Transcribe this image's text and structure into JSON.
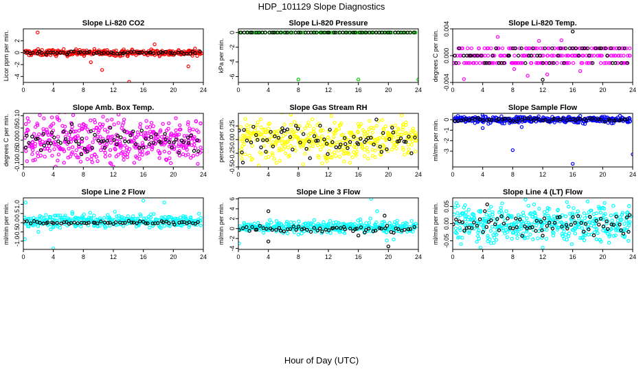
{
  "page": {
    "title": "HDP_101129  Slope Diagnostics",
    "x_axis_title": "Hour of Day (UTC)"
  },
  "chart_data": [
    {
      "type": "scatter",
      "title": "Slope Li-820 CO2",
      "ylabel": "Licor ppm per min.",
      "xlim": [
        0,
        24
      ],
      "ylim": [
        -5,
        4
      ],
      "x_ticks": [
        0,
        4,
        8,
        12,
        16,
        20,
        24
      ],
      "x_tick_labels": [
        "0",
        "4",
        "8",
        "12",
        "16",
        "20",
        "24"
      ],
      "y_ticks": [
        -4,
        -2,
        0,
        2
      ],
      "y_tick_labels": [
        "-4",
        "-2",
        "0",
        "2"
      ],
      "grid": false,
      "series": [
        {
          "color": "#ff0000",
          "cluster": {
            "center": 0.0,
            "spread": 0.9,
            "count": 300
          },
          "points": [
            [
              1.9,
              3.4
            ],
            [
              10.5,
              -2.9
            ],
            [
              14.1,
              -4.9
            ],
            [
              22.0,
              -2.3
            ],
            [
              9.0,
              -1.6
            ],
            [
              17.5,
              1.4
            ]
          ]
        },
        {
          "color": "#000000",
          "cluster": {
            "center": 0.0,
            "spread": 0.4,
            "count": 60
          },
          "points": []
        }
      ]
    },
    {
      "type": "scatter",
      "title": "Slope Li-820 Pressure",
      "ylabel": "kPa per min.",
      "xlim": [
        0,
        24
      ],
      "ylim": [
        -6.8,
        0.5
      ],
      "x_ticks": [
        0,
        4,
        8,
        12,
        16,
        20,
        24
      ],
      "x_tick_labels": [
        "0",
        "4",
        "8",
        "12",
        "16",
        "20",
        "24"
      ],
      "y_ticks": [
        -6,
        -4,
        -2,
        0
      ],
      "y_tick_labels": [
        "-6",
        "-4",
        "-2",
        "0"
      ],
      "grid": false,
      "series": [
        {
          "color": "#00cc00",
          "cluster": {
            "center": 0.0,
            "spread": 0.0,
            "count": 80
          },
          "points": [
            [
              8.0,
              -6.4
            ],
            [
              16.0,
              -6.4
            ],
            [
              24.0,
              -6.4
            ],
            [
              0.0,
              0.0
            ]
          ]
        },
        {
          "color": "#000000",
          "cluster": {
            "center": 0.0,
            "spread": 0.0,
            "count": 55
          },
          "points": []
        }
      ]
    },
    {
      "type": "scatter",
      "title": "Slope Li-820 Temp.",
      "ylabel": "degrees C per min.",
      "xlim": [
        0,
        24
      ],
      "ylim": [
        -0.004,
        0.004
      ],
      "x_ticks": [
        0,
        4,
        8,
        12,
        16,
        20,
        24
      ],
      "x_tick_labels": [
        "0",
        "4",
        "8",
        "12",
        "16",
        "20",
        "24"
      ],
      "y_ticks": [
        -0.004,
        0.0,
        0.004
      ],
      "y_tick_labels": [
        "-0.004",
        "0.000",
        "0.004"
      ],
      "grid": false,
      "series": [
        {
          "color": "#ff00ff",
          "bands": [
            0.0011,
            0.0,
            -0.0011
          ],
          "cluster": {
            "count": 240
          },
          "points": [
            [
              1.5,
              -0.0035
            ],
            [
              6.0,
              0.0028
            ],
            [
              8.2,
              -0.002
            ],
            [
              10.0,
              -0.003
            ],
            [
              12.6,
              -0.0028
            ],
            [
              14.5,
              0.0023
            ],
            [
              17.0,
              -0.0023
            ],
            [
              11.5,
              0.0022
            ]
          ]
        },
        {
          "color": "#000000",
          "bands": [
            0.0011,
            0.0,
            -0.0011
          ],
          "cluster": {
            "count": 60
          },
          "points": [
            [
              12.0,
              -0.0036
            ],
            [
              16.0,
              0.0036
            ]
          ]
        }
      ]
    },
    {
      "type": "scatter",
      "title": "Slope Amb. Box Temp.",
      "ylabel": "degrees C per min.",
      "xlim": [
        0,
        24
      ],
      "ylim": [
        -0.11,
        0.11
      ],
      "x_ticks": [
        0,
        4,
        8,
        12,
        16,
        20,
        24
      ],
      "x_tick_labels": [
        "0",
        "4",
        "8",
        "12",
        "16",
        "20",
        "24"
      ],
      "y_ticks": [
        -0.1,
        -0.05,
        0.0,
        0.05,
        0.1
      ],
      "y_tick_labels": [
        "-0.10",
        "-0.05",
        "0.00",
        "0.05",
        "0.10"
      ],
      "grid": false,
      "series": [
        {
          "color": "#ff00ff",
          "cluster": {
            "center": 0.0,
            "spread": 0.16,
            "count": 420
          },
          "points": []
        },
        {
          "color": "#000000",
          "cluster": {
            "center": 0.0,
            "spread": 0.1,
            "count": 70
          },
          "points": []
        }
      ]
    },
    {
      "type": "scatter",
      "title": "Slope Gas Stream RH",
      "ylabel": "percent per min.",
      "xlim": [
        0,
        24
      ],
      "ylim": [
        -0.5,
        0.48
      ],
      "x_ticks": [
        0,
        4,
        8,
        12,
        16,
        20,
        24
      ],
      "x_tick_labels": [
        "0",
        "4",
        "8",
        "12",
        "16",
        "20",
        "24"
      ],
      "y_ticks": [
        -0.5,
        -0.25,
        0.0,
        0.25
      ],
      "y_tick_labels": [
        "-0.50",
        "-0.25",
        "0.00",
        "0.25"
      ],
      "grid": false,
      "series": [
        {
          "color": "#ffff00",
          "cluster": {
            "center": 0.0,
            "spread": 0.62,
            "count": 420
          },
          "points": []
        },
        {
          "color": "#000000",
          "cluster": {
            "center": 0.0,
            "spread": 0.45,
            "count": 70
          },
          "points": [
            [
              0.6,
              -0.42
            ]
          ]
        }
      ]
    },
    {
      "type": "scatter",
      "title": "Slope Sample Flow",
      "ylabel": "ml/min per min.",
      "xlim": [
        0,
        24
      ],
      "ylim": [
        -4.5,
        0.6
      ],
      "x_ticks": [
        0,
        4,
        8,
        12,
        16,
        20,
        24
      ],
      "x_tick_labels": [
        "0",
        "4",
        "8",
        "12",
        "16",
        "20",
        "24"
      ],
      "y_ticks": [
        -3,
        -2,
        -1,
        0
      ],
      "y_tick_labels": [
        "-3",
        "-2",
        "-1",
        "0"
      ],
      "grid": false,
      "series": [
        {
          "color": "#0000ff",
          "cluster": {
            "center": 0.0,
            "spread": 0.55,
            "count": 330
          },
          "points": [
            [
              8.0,
              -2.9
            ],
            [
              16.0,
              -4.2
            ],
            [
              24.0,
              -3.3
            ],
            [
              4.0,
              -0.8
            ],
            [
              9.2,
              -0.7
            ]
          ]
        },
        {
          "color": "#000000",
          "cluster": {
            "center": 0.0,
            "spread": 0.3,
            "count": 60
          },
          "points": []
        }
      ]
    },
    {
      "type": "scatter",
      "title": "Slope Line 2 Flow",
      "ylabel": "ml/min per min.",
      "xlim": [
        0,
        24
      ],
      "ylim": [
        -1.45,
        1.35
      ],
      "x_ticks": [
        0,
        4,
        8,
        12,
        16,
        20,
        24
      ],
      "x_tick_labels": [
        "0",
        "4",
        "8",
        "12",
        "16",
        "20",
        "24"
      ],
      "y_ticks": [
        -1.0,
        -0.5,
        0.0,
        0.5,
        1.0
      ],
      "y_tick_labels": [
        "-1.0",
        "-0.5",
        "0.0",
        "0.5",
        "1.0"
      ],
      "grid": false,
      "series": [
        {
          "color": "#00ffff",
          "cluster": {
            "center": 0.1,
            "spread": 0.6,
            "count": 330
          },
          "points": [
            [
              0.2,
              -0.9
            ],
            [
              4.0,
              -1.4
            ],
            [
              16.0,
              1.2
            ],
            [
              18.8,
              1.1
            ],
            [
              0.3,
              1.1
            ],
            [
              2.0,
              -0.5
            ]
          ]
        },
        {
          "color": "#000000",
          "cluster": {
            "center": 0.0,
            "spread": 0.15,
            "count": 60
          },
          "points": []
        }
      ]
    },
    {
      "type": "scatter",
      "title": "Slope Line 3 Flow",
      "ylabel": "ml/min per min.",
      "xlim": [
        0,
        24
      ],
      "ylim": [
        -4.2,
        6.2
      ],
      "x_ticks": [
        0,
        4,
        8,
        12,
        16,
        20,
        24
      ],
      "x_tick_labels": [
        "0",
        "4",
        "8",
        "12",
        "16",
        "20",
        "24"
      ],
      "y_ticks": [
        -4,
        -2,
        0,
        2,
        4,
        6
      ],
      "y_tick_labels": [
        "-4",
        "-2",
        "0",
        "2",
        "4",
        "6"
      ],
      "grid": false,
      "series": [
        {
          "color": "#00ffff",
          "cluster": {
            "center": 0.3,
            "spread": 2.0,
            "count": 330
          },
          "points": [
            [
              17.7,
              6.0
            ],
            [
              18.5,
              3.5
            ],
            [
              0.1,
              -3.0
            ],
            [
              19.8,
              -2.4
            ],
            [
              20.7,
              -2.2
            ],
            [
              8.0,
              -1.2
            ],
            [
              12.3,
              -0.9
            ]
          ]
        },
        {
          "color": "#000000",
          "cluster": {
            "center": 0.0,
            "spread": 1.2,
            "count": 60
          },
          "points": [
            [
              4.0,
              3.5
            ],
            [
              4.0,
              -2.6
            ],
            [
              19.5,
              2.6
            ],
            [
              20.0,
              -3.6
            ],
            [
              16.0,
              -1.4
            ]
          ]
        }
      ]
    },
    {
      "type": "scatter",
      "title": "Slope Line 4 (LT) Flow",
      "ylabel": "ml/min per min.",
      "xlim": [
        0,
        24
      ],
      "ylim": [
        -0.075,
        0.075
      ],
      "x_ticks": [
        0,
        4,
        8,
        12,
        16,
        20,
        24
      ],
      "x_tick_labels": [
        "0",
        "4",
        "8",
        "12",
        "16",
        "20",
        "24"
      ],
      "y_ticks": [
        -0.05,
        0.0,
        0.05
      ],
      "y_tick_labels": [
        "-0.05",
        "0.00",
        "0.05"
      ],
      "grid": false,
      "series": [
        {
          "color": "#00ffff",
          "cluster": {
            "center": 0.0,
            "spread": 0.09,
            "count": 420
          },
          "points": [
            [
              9.7,
              0.07
            ],
            [
              12.0,
              -0.07
            ],
            [
              0.5,
              0.06
            ]
          ]
        },
        {
          "color": "#000000",
          "cluster": {
            "center": 0.0,
            "spread": 0.06,
            "count": 70
          },
          "points": [
            [
              4.6,
              0.056
            ],
            [
              23.6,
              0.025
            ],
            [
              12.0,
              -0.035
            ]
          ]
        }
      ]
    }
  ]
}
